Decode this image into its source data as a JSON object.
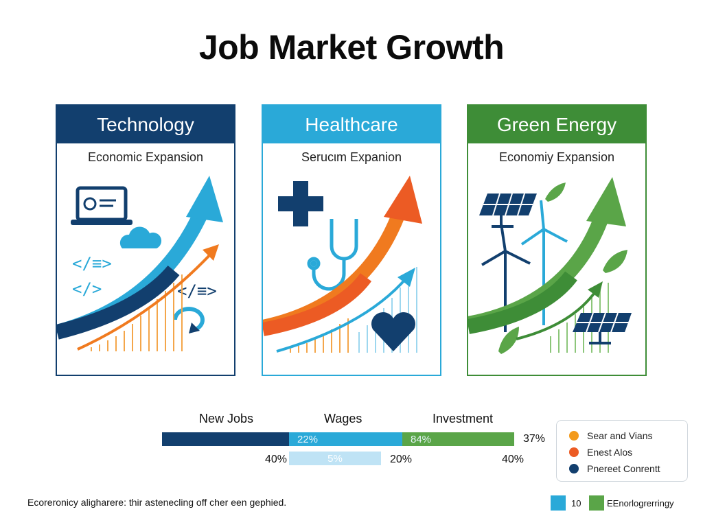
{
  "page": {
    "title": "Job Market Growth"
  },
  "chart_data": {
    "type": "bar",
    "title": "Job Market Growth",
    "panels": [
      {
        "title": "Technology",
        "subtitle": "Economic Expansion",
        "color": "#123f6e",
        "trend": "rising"
      },
      {
        "title": "Healthcare",
        "subtitle": "Serucιm Expanion",
        "color": "#2aa9d8",
        "trend": "rising"
      },
      {
        "title": "Green Energy",
        "subtitle": "Economiy Expansion",
        "color": "#3e8d37",
        "trend": "rising"
      }
    ],
    "bar_headers": [
      "New Jobs",
      "Wages",
      "Investment"
    ],
    "stacked_bar": {
      "segments": [
        {
          "label": "",
          "color": "#123f6e"
        },
        {
          "label": "22%",
          "color": "#2aa9d8"
        },
        {
          "label": "84%",
          "color": "#5aa548"
        }
      ],
      "end_label": "37%"
    },
    "row2": {
      "values": [
        "40%",
        "5%",
        "20%",
        "40%"
      ],
      "highlight_color": "#bfe3f5"
    },
    "legend": [
      {
        "label": "Sear and Vians",
        "color": "#f39a1b"
      },
      {
        "label": "Enest Alos",
        "color": "#ec5b24"
      },
      {
        "label": "Pnereet Conrentt",
        "color": "#123f6e"
      }
    ],
    "footnote": "Ecoreronicy aligharere: thir astenecling off cher een gephied.",
    "bottom_legend": [
      {
        "label": "10",
        "color": "#2aa9d8"
      },
      {
        "label": "EEnorlogrerringy",
        "color": "#5aa548"
      }
    ]
  }
}
